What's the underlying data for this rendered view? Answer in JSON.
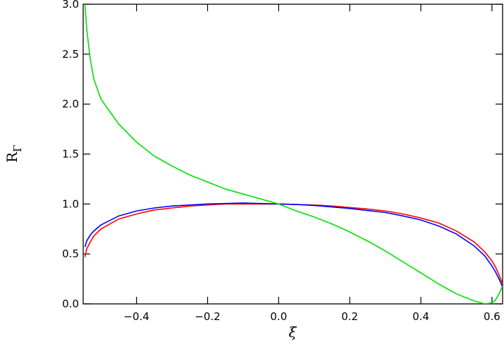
{
  "chart_data": {
    "type": "line",
    "xlabel": "ξ",
    "ylabel": {
      "base": "R",
      "sub": "Γ"
    },
    "x": [
      -0.545,
      -0.54,
      -0.53,
      -0.52,
      -0.5,
      -0.45,
      -0.4,
      -0.35,
      -0.3,
      -0.25,
      -0.2,
      -0.15,
      -0.1,
      -0.05,
      0,
      0.05,
      0.1,
      0.15,
      0.2,
      0.25,
      0.3,
      0.35,
      0.4,
      0.45,
      0.5,
      0.55,
      0.58,
      0.6,
      0.61,
      0.62,
      0.63
    ],
    "series": [
      {
        "color": "#ff0000",
        "values": [
          0.47,
          0.55,
          0.62,
          0.68,
          0.75,
          0.85,
          0.9,
          0.94,
          0.96,
          0.98,
          0.99,
          1.0,
          1.0,
          1.0,
          1.0,
          0.995,
          0.99,
          0.98,
          0.965,
          0.95,
          0.93,
          0.9,
          0.86,
          0.81,
          0.73,
          0.62,
          0.52,
          0.43,
          0.37,
          0.29,
          0.2
        ]
      },
      {
        "color": "#0000ff",
        "values": [
          0.57,
          0.63,
          0.69,
          0.73,
          0.79,
          0.88,
          0.93,
          0.96,
          0.98,
          0.99,
          1.0,
          1.005,
          1.01,
          1.005,
          1.0,
          0.995,
          0.985,
          0.97,
          0.955,
          0.935,
          0.915,
          0.88,
          0.84,
          0.78,
          0.7,
          0.58,
          0.48,
          0.38,
          0.32,
          0.25,
          0.17
        ]
      },
      {
        "color": "#00e000",
        "values": [
          3.0,
          2.75,
          2.45,
          2.25,
          2.05,
          1.8,
          1.62,
          1.48,
          1.38,
          1.29,
          1.22,
          1.15,
          1.1,
          1.05,
          1.0,
          0.93,
          0.87,
          0.8,
          0.72,
          0.63,
          0.53,
          0.42,
          0.31,
          0.2,
          0.1,
          0.03,
          0.0,
          0.01,
          0.04,
          0.1,
          0.18
        ]
      }
    ],
    "xlim": [
      -0.55,
      0.63
    ],
    "ylim": [
      0,
      3
    ],
    "xticks": [
      {
        "value": -0.4,
        "label": "−0.4"
      },
      {
        "value": -0.2,
        "label": "−0.2"
      },
      {
        "value": 0,
        "label": "0.0"
      },
      0.2,
      0.4,
      0.6
    ],
    "yticks": [
      {
        "value": 0,
        "label": "0.0"
      },
      0.5,
      {
        "value": 1,
        "label": "1.0"
      },
      1.5,
      {
        "value": 2,
        "label": "2.0"
      },
      2.5,
      {
        "value": 3,
        "label": "3.0"
      }
    ]
  }
}
